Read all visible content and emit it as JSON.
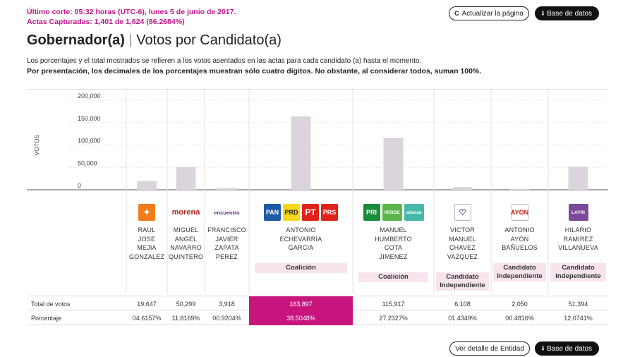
{
  "header": {
    "last_cut": "Último corte: 05:32 horas (UTC-6), lunes 5 de junio de 2017.",
    "actas": "Actas Capturadas: 1,401 de 1,624 (86.2684%)",
    "refresh_label": "Actualizar la página",
    "refresh_icon": "refresh-icon",
    "db_label": "Base de datos",
    "db_icon": "download-icon"
  },
  "title": {
    "main": "Gobernador(a)",
    "separator": "|",
    "sub": "Votos por Candidato(a)"
  },
  "notes": {
    "line1": "Los porcentajes y el total mostrados se refieren a los votos asentados en las actas para cada candidato (a) hasta el momento.",
    "line2": "Por presentación, los decimales de los porcentajes muestran sólo cuatro dígitos. No obstante, al considerar todos, suman 100%."
  },
  "chart_data": {
    "type": "bar",
    "ylabel": "VOTOS",
    "ylim": [
      0,
      200000
    ],
    "yticks": [
      "200,000",
      "150,000",
      "100,000",
      "50,000",
      "0"
    ],
    "ytick_values": [
      200000,
      150000,
      100000,
      50000,
      0
    ],
    "bar_color": "#dcd4dc",
    "categories": [
      "RAUL JOSE MEJIA GONZALEZ",
      "MIGUEL ANGEL NAVARRO QUINTERO",
      "FRANCISCO JAVIER ZAPATA PEREZ",
      "ANTONIO ECHEVARRIA GARCIA",
      "MANUEL HUMBERTO COTA JIMENEZ",
      "VICTOR MANUEL CHAVEZ VAZQUEZ",
      "ANTONIO AYÓN BAÑUELOS",
      "HILARIO RAMIREZ VILLANUEVA"
    ],
    "values": [
      19647,
      50299,
      3918,
      163897,
      115917,
      6108,
      2050,
      51394
    ]
  },
  "candidates": [
    {
      "lines": [
        "RAUL",
        "JOSE",
        "MEJIA",
        "GONZALEZ"
      ],
      "logos": [
        {
          "name": "mc-logo",
          "text": "✦",
          "bg": "#f07c1a",
          "fg": "#fff"
        }
      ],
      "tag": ""
    },
    {
      "lines": [
        "MIGUEL",
        "ANGEL",
        "NAVARRO",
        "QUINTERO"
      ],
      "logos": [
        {
          "name": "morena-logo",
          "text": "morena",
          "bg": "transparent",
          "fg": "#b5261e"
        }
      ],
      "tag": ""
    },
    {
      "lines": [
        "FRANCISCO",
        "JAVIER",
        "ZAPATA",
        "PEREZ"
      ],
      "logos": [
        {
          "name": "encuentro-social-logo",
          "text": "encuentro",
          "bg": "transparent",
          "fg": "#5b2d82"
        }
      ],
      "tag": ""
    },
    {
      "lines": [
        "ANTONIO",
        "ECHEVARRIA",
        "GARCIA"
      ],
      "logos": [
        {
          "name": "pan-logo",
          "text": "PAN",
          "bg": "#1d5aa5",
          "fg": "#fff"
        },
        {
          "name": "prd-logo",
          "text": "PRD",
          "bg": "#f9d71c",
          "fg": "#222"
        },
        {
          "name": "pt-logo",
          "text": "PT",
          "bg": "#e0221b",
          "fg": "#fff"
        },
        {
          "name": "prs-logo",
          "text": "PRS",
          "bg": "#e0221b",
          "fg": "#fff"
        }
      ],
      "tag": "Coalición"
    },
    {
      "lines": [
        "MANUEL",
        "HUMBERTO",
        "COTA",
        "JIMENEZ"
      ],
      "logos": [
        {
          "name": "pri-logo",
          "text": "PRI",
          "bg": "#1a8c3a",
          "fg": "#fff"
        },
        {
          "name": "pvem-logo",
          "text": "VERDE",
          "bg": "#5cb64c",
          "fg": "#fff"
        },
        {
          "name": "nueva-alianza-logo",
          "text": "alianza",
          "bg": "#46b8a8",
          "fg": "#fff"
        }
      ],
      "tag": "Coalición"
    },
    {
      "lines": [
        "VICTOR",
        "MANUEL",
        "CHAVEZ",
        "VAZQUEZ"
      ],
      "logos": [
        {
          "name": "independent-heart-logo",
          "text": "♡",
          "bg": "#fff",
          "fg": "#5b2d82"
        }
      ],
      "tag": "Candidato Independiente"
    },
    {
      "lines": [
        "ANTONIO",
        "AYÓN",
        "BAÑUELOS"
      ],
      "logos": [
        {
          "name": "ayon-logo",
          "text": "AYON",
          "bg": "#fff",
          "fg": "#c0201a"
        }
      ],
      "tag": "Candidato Independiente"
    },
    {
      "lines": [
        "HILARIO",
        "RAMIREZ",
        "VILLANUEVA"
      ],
      "logos": [
        {
          "name": "layin-logo",
          "text": "LAYIN",
          "bg": "#7b4a9a",
          "fg": "#fff"
        }
      ],
      "tag": "Candidato Independiente"
    }
  ],
  "table": {
    "rows": [
      {
        "label": "Total de votos",
        "values": [
          "19,647",
          "50,299",
          "3,918",
          "163,897",
          "115,917",
          "6,108",
          "2,050",
          "51,394"
        ]
      },
      {
        "label": "Porcentaje",
        "values": [
          "04.6157%",
          "11.8169%",
          "00.9204%",
          "38.5048%",
          "27.2327%",
          "01.4349%",
          "00.4816%",
          "12.0741%"
        ]
      }
    ],
    "highlight_color": "#c8157e"
  },
  "footer": {
    "detail_label": "Ver detalle de Entidad",
    "db_label": "Base de datos",
    "db_icon": "download-icon"
  }
}
